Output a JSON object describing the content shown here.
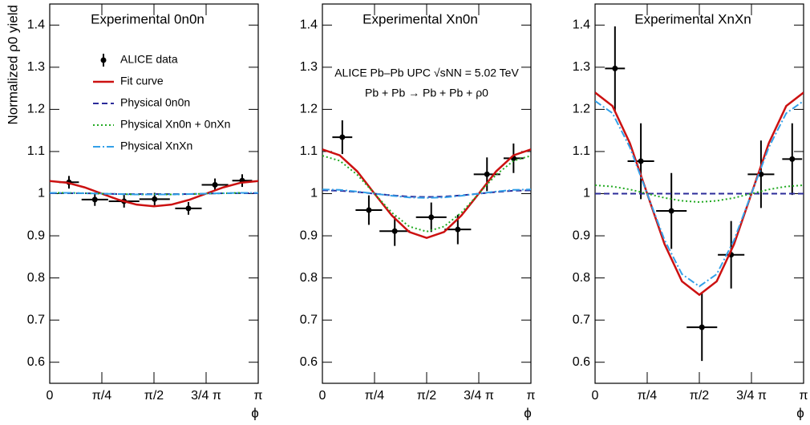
{
  "chart_data": [
    {
      "type": "errorbar",
      "title": "Experimental 0n0n",
      "y_label": "Normalized ρ0 yield",
      "x_label": "ϕ",
      "xlim": [
        0,
        3.1416
      ],
      "ylim": [
        0.55,
        1.45
      ],
      "xticks": [
        0,
        {
          "value": 0.7854,
          "label": "π/4"
        },
        {
          "value": 1.5708,
          "label": "π/2"
        },
        {
          "value": 2.3562,
          "label": "3/4 π"
        },
        {
          "value": 3.1416,
          "label": "π"
        }
      ],
      "yticks": [
        0.6,
        0.7,
        0.8,
        0.9,
        1,
        1.1,
        1.2,
        1.3,
        1.4
      ],
      "legend": true,
      "series": [
        {
          "name": "ALICE data",
          "style": "points",
          "color": "#000000",
          "x": [
            0.29,
            0.68,
            1.12,
            1.58,
            2.09,
            2.49,
            2.9
          ],
          "xerr": [
            0.15,
            0.2,
            0.23,
            0.23,
            0.2,
            0.2,
            0.15
          ],
          "values": [
            1.027,
            0.986,
            0.982,
            0.987,
            0.965,
            1.021,
            1.031
          ],
          "errors": [
            0.015,
            0.015,
            0.015,
            0.015,
            0.015,
            0.015,
            0.015
          ]
        },
        {
          "name": "Fit curve",
          "style": "solid",
          "color": "#cc1111",
          "x": [
            0,
            0.262,
            0.524,
            0.785,
            1.047,
            1.309,
            1.571,
            1.833,
            2.094,
            2.356,
            2.618,
            2.88,
            3.142
          ],
          "values": [
            1.03,
            1.026,
            1.015,
            1,
            0.985,
            0.974,
            0.97,
            0.974,
            0.985,
            1,
            1.015,
            1.026,
            1.03
          ]
        },
        {
          "name": "Physical 0n0n",
          "style": "dashed",
          "color": "#2b2b9a",
          "x": [
            0,
            0.262,
            0.524,
            0.785,
            1.047,
            1.309,
            1.571,
            1.833,
            2.094,
            2.356,
            2.618,
            2.88,
            3.142
          ],
          "values": [
            1.001,
            1.001,
            1.001,
            1,
            0.999,
            0.999,
            0.999,
            0.999,
            0.999,
            1,
            1.001,
            1.001,
            1.001
          ]
        },
        {
          "name": "Physical Xn0n + 0nXn",
          "style": "dotted",
          "color": "#22aa22",
          "x": [
            0,
            0.262,
            0.524,
            0.785,
            1.047,
            1.309,
            1.571,
            1.833,
            2.094,
            2.356,
            2.618,
            2.88,
            3.142
          ],
          "values": [
            1.002,
            1.002,
            1.001,
            1,
            0.999,
            0.998,
            0.998,
            0.998,
            0.999,
            1,
            1.001,
            1.002,
            1.002
          ]
        },
        {
          "name": "Physical XnXn",
          "style": "dashdot",
          "color": "#33a0e8",
          "x": [
            0,
            0.262,
            0.524,
            0.785,
            1.047,
            1.309,
            1.571,
            1.833,
            2.094,
            2.356,
            2.618,
            2.88,
            3.142
          ],
          "values": [
            1.002,
            1.002,
            1.001,
            1,
            0.999,
            0.998,
            0.998,
            0.998,
            0.999,
            1,
            1.001,
            1.002,
            1.002
          ]
        }
      ]
    },
    {
      "type": "errorbar",
      "title": "Experimental Xn0n",
      "x_label": "ϕ",
      "annotations": [
        "ALICE Pb–Pb UPC √sNN = 5.02 TeV",
        "Pb + Pb → Pb + Pb + ρ0"
      ],
      "xlim": [
        0,
        3.1416
      ],
      "ylim": [
        0.55,
        1.45
      ],
      "xticks": [
        0,
        {
          "value": 0.7854,
          "label": "π/4"
        },
        {
          "value": 1.5708,
          "label": "π/2"
        },
        {
          "value": 2.3562,
          "label": "3/4 π"
        },
        {
          "value": 3.1416,
          "label": "π"
        }
      ],
      "yticks": [
        0.6,
        0.7,
        0.8,
        0.9,
        1,
        1.1,
        1.2,
        1.3,
        1.4
      ],
      "legend": false,
      "series": [
        {
          "style": "points",
          "color": "#000000",
          "x": [
            0.3,
            0.7,
            1.09,
            1.64,
            2.04,
            2.48,
            2.88
          ],
          "xerr": [
            0.15,
            0.2,
            0.23,
            0.23,
            0.2,
            0.2,
            0.15
          ],
          "values": [
            1.134,
            0.961,
            0.911,
            0.944,
            0.915,
            1.046,
            1.084
          ],
          "errors": [
            0.04,
            0.035,
            0.035,
            0.035,
            0.035,
            0.04,
            0.035
          ]
        },
        {
          "style": "solid",
          "color": "#cc1111",
          "x": [
            0,
            0.262,
            0.524,
            0.785,
            1.047,
            1.309,
            1.571,
            1.833,
            2.094,
            2.356,
            2.618,
            2.88,
            3.142
          ],
          "values": [
            1.105,
            1.091,
            1.053,
            1,
            0.948,
            0.909,
            0.895,
            0.909,
            0.948,
            1,
            1.053,
            1.091,
            1.105
          ]
        },
        {
          "style": "dashed",
          "color": "#2b2b9a",
          "x": [
            0,
            0.262,
            0.524,
            0.785,
            1.047,
            1.309,
            1.571,
            1.833,
            2.094,
            2.356,
            2.618,
            2.88,
            3.142
          ],
          "values": [
            1.008,
            1.007,
            1.004,
            1,
            0.996,
            0.993,
            0.992,
            0.993,
            0.996,
            1,
            1.004,
            1.007,
            1.008
          ]
        },
        {
          "style": "dotted",
          "color": "#22aa22",
          "x": [
            0,
            0.262,
            0.524,
            0.785,
            1.047,
            1.309,
            1.571,
            1.833,
            2.094,
            2.356,
            2.618,
            2.88,
            3.142
          ],
          "values": [
            1.09,
            1.078,
            1.045,
            1,
            0.955,
            0.922,
            0.91,
            0.922,
            0.955,
            1,
            1.045,
            1.078,
            1.09
          ]
        },
        {
          "style": "dashdot",
          "color": "#33a0e8",
          "x": [
            0,
            0.262,
            0.524,
            0.785,
            1.047,
            1.309,
            1.571,
            1.833,
            2.094,
            2.356,
            2.618,
            2.88,
            3.142
          ],
          "values": [
            1.01,
            1.009,
            1.005,
            1,
            0.995,
            0.991,
            0.99,
            0.991,
            0.995,
            1,
            1.005,
            1.009,
            1.01
          ]
        }
      ]
    },
    {
      "type": "errorbar",
      "title": "Experimental XnXn",
      "x_label": "ϕ",
      "xlim": [
        0,
        3.1416
      ],
      "ylim": [
        0.55,
        1.45
      ],
      "xticks": [
        0,
        {
          "value": 0.7854,
          "label": "π/4"
        },
        {
          "value": 1.5708,
          "label": "π/2"
        },
        {
          "value": 2.3562,
          "label": "3/4 π"
        },
        {
          "value": 3.1416,
          "label": "π"
        }
      ],
      "yticks": [
        0.6,
        0.7,
        0.8,
        0.9,
        1,
        1.1,
        1.2,
        1.3,
        1.4
      ],
      "legend": false,
      "series": [
        {
          "style": "points",
          "color": "#000000",
          "x": [
            0.3,
            0.69,
            1.15,
            1.61,
            2.05,
            2.5,
            2.97
          ],
          "xerr": [
            0.15,
            0.2,
            0.23,
            0.23,
            0.2,
            0.2,
            0.15
          ],
          "values": [
            1.297,
            1.077,
            0.959,
            0.683,
            0.855,
            1.046,
            1.082
          ],
          "errors": [
            0.1,
            0.09,
            0.09,
            0.08,
            0.08,
            0.08,
            0.085
          ]
        },
        {
          "style": "solid",
          "color": "#cc1111",
          "x": [
            0,
            0.262,
            0.524,
            0.785,
            1.047,
            1.309,
            1.571,
            1.833,
            2.094,
            2.356,
            2.618,
            2.88,
            3.142
          ],
          "values": [
            1.24,
            1.208,
            1.12,
            1,
            0.88,
            0.792,
            0.76,
            0.792,
            0.88,
            1,
            1.12,
            1.208,
            1.24
          ]
        },
        {
          "style": "dashed",
          "color": "#2b2b9a",
          "x": [
            0,
            0.262,
            0.524,
            0.785,
            1.047,
            1.309,
            1.571,
            1.833,
            2.094,
            2.356,
            2.618,
            2.88,
            3.142
          ],
          "values": [
            1,
            1,
            1,
            1,
            1,
            1,
            1,
            1,
            1,
            1,
            1,
            1,
            1
          ]
        },
        {
          "style": "dotted",
          "color": "#22aa22",
          "x": [
            0,
            0.262,
            0.524,
            0.785,
            1.047,
            1.309,
            1.571,
            1.833,
            2.094,
            2.356,
            2.618,
            2.88,
            3.142
          ],
          "values": [
            1.02,
            1.017,
            1.01,
            1,
            0.99,
            0.983,
            0.98,
            0.983,
            0.99,
            1,
            1.01,
            1.017,
            1.02
          ]
        },
        {
          "style": "dashdot",
          "color": "#33a0e8",
          "x": [
            0,
            0.262,
            0.524,
            0.785,
            1.047,
            1.309,
            1.571,
            1.833,
            2.094,
            2.356,
            2.618,
            2.88,
            3.142
          ],
          "values": [
            1.22,
            1.191,
            1.11,
            1,
            0.89,
            0.809,
            0.78,
            0.809,
            0.89,
            1,
            1.11,
            1.191,
            1.22
          ]
        }
      ]
    }
  ]
}
